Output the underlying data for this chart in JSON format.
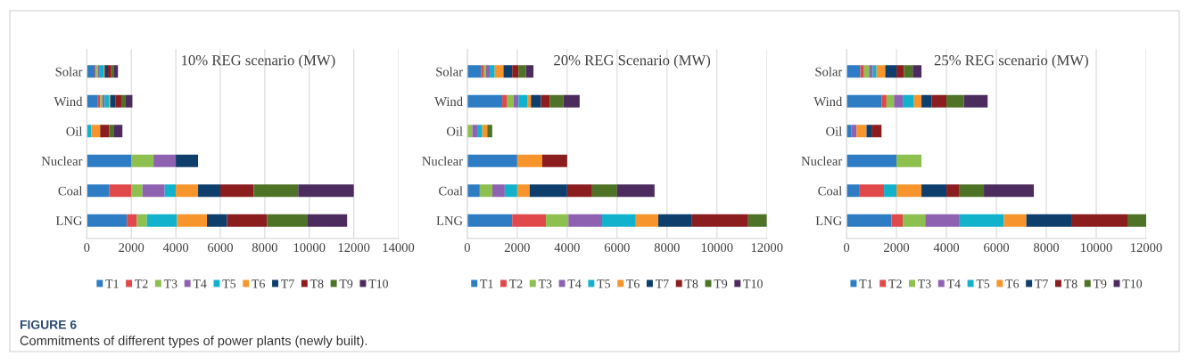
{
  "chart_data": [
    {
      "type": "bar",
      "orientation": "horizontal",
      "stacked": true,
      "title": "10% REG scenario (MW)",
      "categories": [
        "Solar",
        "Wind",
        "Oil",
        "Nuclear",
        "Coal",
        "LNG"
      ],
      "xlim": [
        0,
        14000
      ],
      "xticks": [
        0,
        2000,
        4000,
        6000,
        8000,
        10000,
        12000,
        14000
      ],
      "grid": "x",
      "legend": "bottom",
      "annotations": [
        "FIGURE 6",
        "Commitments of different types of power plants (newly built)."
      ],
      "series": [
        {
          "name": "T1",
          "color": "#2e7dc4",
          "values": [
            350,
            500,
            0,
            2000,
            1000,
            1800
          ]
        },
        {
          "name": "T2",
          "color": "#e0484a",
          "values": [
            50,
            100,
            0,
            0,
            1000,
            450
          ]
        },
        {
          "name": "T3",
          "color": "#8dc04f",
          "values": [
            100,
            100,
            0,
            1000,
            500,
            450
          ]
        },
        {
          "name": "T4",
          "color": "#8e62b0",
          "values": [
            50,
            100,
            0,
            1000,
            1000,
            0
          ]
        },
        {
          "name": "T5",
          "color": "#12b2cc",
          "values": [
            200,
            200,
            200,
            0,
            500,
            1350
          ]
        },
        {
          "name": "T6",
          "color": "#f7952c",
          "values": [
            50,
            50,
            400,
            0,
            1000,
            1350
          ]
        },
        {
          "name": "T7",
          "color": "#0e3e6c",
          "values": [
            150,
            250,
            0,
            1000,
            1000,
            900
          ]
        },
        {
          "name": "T8",
          "color": "#8c1d1f",
          "values": [
            150,
            250,
            400,
            0,
            1500,
            1800
          ]
        },
        {
          "name": "T9",
          "color": "#4e7226",
          "values": [
            100,
            200,
            200,
            0,
            2000,
            1800
          ]
        },
        {
          "name": "T10",
          "color": "#4c2c5e",
          "values": [
            200,
            300,
            400,
            0,
            2500,
            1800
          ]
        }
      ]
    },
    {
      "type": "bar",
      "orientation": "horizontal",
      "stacked": true,
      "title": "20% REG Scenario (MW)",
      "categories": [
        "Solar",
        "Wind",
        "Oil",
        "Nuclear",
        "Coal",
        "LNG"
      ],
      "xlim": [
        0,
        12000
      ],
      "xticks": [
        0,
        2000,
        4000,
        6000,
        8000,
        10000,
        12000
      ],
      "grid": "x",
      "legend": "bottom",
      "series": [
        {
          "name": "T1",
          "color": "#2e7dc4",
          "values": [
            550,
            1400,
            0,
            2000,
            500,
            1800
          ]
        },
        {
          "name": "T2",
          "color": "#e0484a",
          "values": [
            100,
            200,
            0,
            0,
            0,
            1350
          ]
        },
        {
          "name": "T3",
          "color": "#8dc04f",
          "values": [
            100,
            250,
            200,
            0,
            500,
            900
          ]
        },
        {
          "name": "T4",
          "color": "#8e62b0",
          "values": [
            150,
            200,
            200,
            0,
            500,
            1350
          ]
        },
        {
          "name": "T5",
          "color": "#12b2cc",
          "values": [
            200,
            350,
            200,
            0,
            500,
            1350
          ]
        },
        {
          "name": "T6",
          "color": "#f7952c",
          "values": [
            350,
            150,
            200,
            1000,
            500,
            900
          ]
        },
        {
          "name": "T7",
          "color": "#0e3e6c",
          "values": [
            350,
            400,
            0,
            0,
            1500,
            1350
          ]
        },
        {
          "name": "T8",
          "color": "#8c1d1f",
          "values": [
            250,
            350,
            0,
            1000,
            1000,
            2250
          ]
        },
        {
          "name": "T9",
          "color": "#4e7226",
          "values": [
            300,
            550,
            200,
            0,
            1000,
            750
          ]
        },
        {
          "name": "T10",
          "color": "#4c2c5e",
          "values": [
            300,
            650,
            0,
            0,
            1500,
            0
          ]
        }
      ]
    },
    {
      "type": "bar",
      "orientation": "horizontal",
      "stacked": true,
      "title": "25% REG scenario (MW)",
      "categories": [
        "Solar",
        "Wind",
        "Oil",
        "Nuclear",
        "Coal",
        "LNG"
      ],
      "xlim": [
        0,
        12000
      ],
      "xticks": [
        0,
        2000,
        4000,
        6000,
        8000,
        10000,
        12000
      ],
      "grid": "x",
      "legend": "bottom",
      "series": [
        {
          "name": "T1",
          "color": "#2e7dc4",
          "values": [
            550,
            1400,
            200,
            2000,
            500,
            1800
          ]
        },
        {
          "name": "T2",
          "color": "#e0484a",
          "values": [
            150,
            200,
            0,
            0,
            1000,
            450
          ]
        },
        {
          "name": "T3",
          "color": "#8dc04f",
          "values": [
            200,
            300,
            0,
            1000,
            0,
            900
          ]
        },
        {
          "name": "T4",
          "color": "#8e62b0",
          "values": [
            150,
            350,
            200,
            0,
            0,
            1350
          ]
        },
        {
          "name": "T5",
          "color": "#12b2cc",
          "values": [
            150,
            450,
            0,
            0,
            500,
            1800
          ]
        },
        {
          "name": "T6",
          "color": "#f7952c",
          "values": [
            350,
            300,
            400,
            0,
            1000,
            900
          ]
        },
        {
          "name": "T7",
          "color": "#0e3e6c",
          "values": [
            450,
            400,
            200,
            0,
            1000,
            1800
          ]
        },
        {
          "name": "T8",
          "color": "#8c1d1f",
          "values": [
            300,
            600,
            400,
            0,
            500,
            2250
          ]
        },
        {
          "name": "T9",
          "color": "#4e7226",
          "values": [
            350,
            700,
            0,
            0,
            1000,
            750
          ]
        },
        {
          "name": "T10",
          "color": "#4c2c5e",
          "values": [
            350,
            950,
            0,
            0,
            2000,
            0
          ]
        }
      ]
    }
  ]
}
